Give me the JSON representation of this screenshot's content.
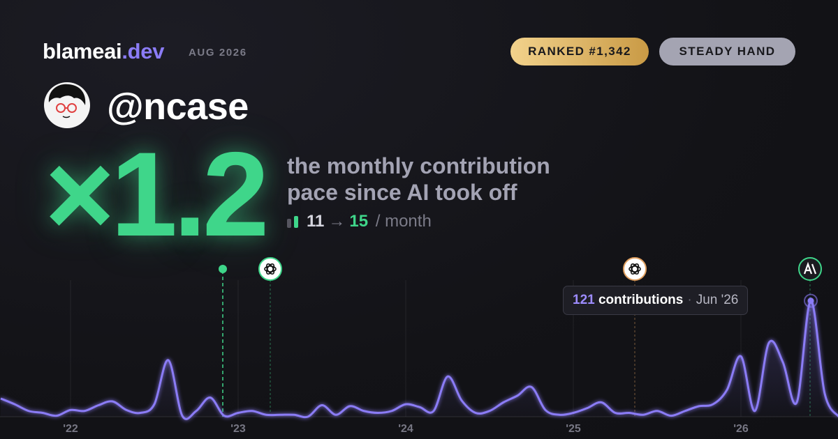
{
  "brand": {
    "name": "blameai",
    "tld": ".dev"
  },
  "date": "AUG 2026",
  "badges": [
    "RANKED #1,342",
    "STEADY HAND"
  ],
  "handle": "@ncase",
  "multiplier": "×1.2",
  "description": [
    "the monthly contribution",
    "pace since AI took off"
  ],
  "pace": {
    "before": 11,
    "arrow": "→",
    "after": 15,
    "unit": "/ month"
  },
  "chart_data": {
    "type": "line",
    "x": [
      "2021-08",
      "2021-09",
      "2021-10",
      "2021-11",
      "2021-12",
      "2022-01",
      "2022-02",
      "2022-03",
      "2022-04",
      "2022-05",
      "2022-06",
      "2022-07",
      "2022-08",
      "2022-09",
      "2022-10",
      "2022-11",
      "2022-12",
      "2023-01",
      "2023-02",
      "2023-03",
      "2023-04",
      "2023-05",
      "2023-06",
      "2023-07",
      "2023-08",
      "2023-09",
      "2023-10",
      "2023-11",
      "2023-12",
      "2024-01",
      "2024-02",
      "2024-03",
      "2024-04",
      "2024-05",
      "2024-06",
      "2024-07",
      "2024-08",
      "2024-09",
      "2024-10",
      "2024-11",
      "2024-12",
      "2025-01",
      "2025-02",
      "2025-03",
      "2025-04",
      "2025-05",
      "2025-06",
      "2025-07",
      "2025-08",
      "2025-09",
      "2025-10",
      "2025-11",
      "2025-12",
      "2026-01",
      "2026-02",
      "2026-03",
      "2026-04",
      "2026-05",
      "2026-06",
      "2026-07",
      "2026-08"
    ],
    "series": [
      {
        "name": "contributions",
        "color": "#8b7cf6",
        "values": [
          19,
          13,
          6,
          4,
          1,
          7,
          6,
          12,
          16,
          7,
          4,
          13,
          59,
          1,
          6,
          20,
          1,
          4,
          6,
          2,
          2,
          2,
          0,
          12,
          2,
          11,
          6,
          4,
          6,
          13,
          10,
          6,
          42,
          17,
          4,
          6,
          15,
          22,
          31,
          7,
          2,
          4,
          9,
          15,
          4,
          4,
          2,
          6,
          1,
          6,
          11,
          13,
          28,
          63,
          6,
          77,
          57,
          15,
          121,
          24,
          0
        ]
      }
    ],
    "ylim": [
      0,
      160
    ],
    "xticks": [
      {
        "value": "2022-01",
        "label": "'22"
      },
      {
        "value": "2023-01",
        "label": "'23"
      },
      {
        "value": "2024-01",
        "label": "'24"
      },
      {
        "value": "2025-01",
        "label": "'25"
      },
      {
        "value": "2026-01",
        "label": "'26"
      }
    ],
    "grid": true,
    "tooltip": {
      "x_label": "Jun '26"
    }
  }
}
